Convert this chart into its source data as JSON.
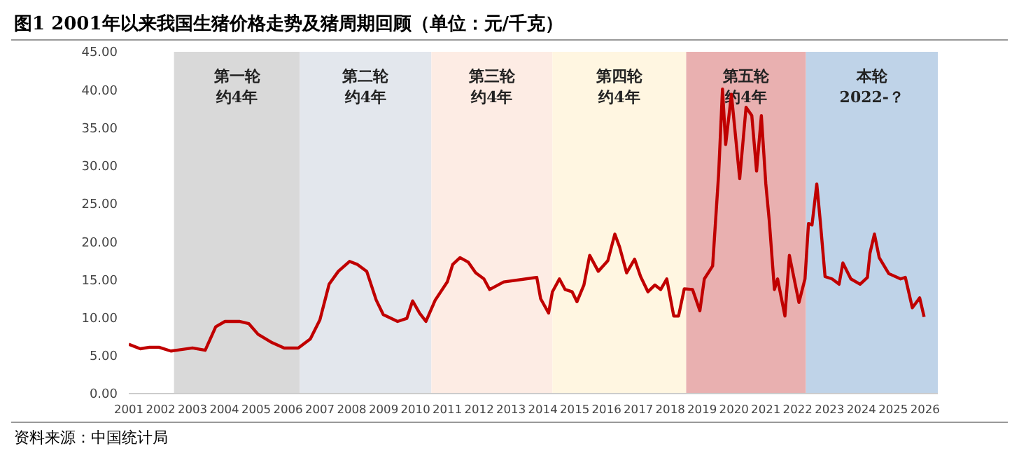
{
  "chart_data": {
    "type": "line",
    "title": "图1  2001年以来我国生猪价格走势及猪周期回顾（单位：元/千克）",
    "annotations": [
      "资料来源：中国统计局"
    ],
    "x": [
      2001.0,
      2001.36,
      2001.65,
      2001.95,
      2002.32,
      2003.0,
      2003.4,
      2003.73,
      2004.02,
      2004.47,
      2004.77,
      2005.06,
      2005.5,
      2005.88,
      2006.32,
      2006.7,
      2007.0,
      2007.29,
      2007.58,
      2007.93,
      2008.18,
      2008.47,
      2008.77,
      2008.99,
      2009.44,
      2009.73,
      2009.91,
      2010.13,
      2010.33,
      2010.62,
      2011.0,
      2011.17,
      2011.4,
      2011.66,
      2011.89,
      2012.15,
      2012.33,
      2012.77,
      2013.81,
      2013.93,
      2014.18,
      2014.3,
      2014.52,
      2014.7,
      2014.92,
      2015.07,
      2015.29,
      2015.47,
      2015.74,
      2016.04,
      2016.26,
      2016.41,
      2016.63,
      2016.88,
      2017.07,
      2017.3,
      2017.52,
      2017.7,
      2017.89,
      2018.11,
      2018.26,
      2018.44,
      2018.7,
      2018.93,
      2019.07,
      2019.33,
      2019.52,
      2019.64,
      2019.74,
      2019.92,
      2020.18,
      2020.38,
      2020.56,
      2020.71,
      2020.86,
      2021.0,
      2021.11,
      2021.27,
      2021.37,
      2021.6,
      2021.74,
      2022.04,
      2022.23,
      2022.34,
      2022.45,
      2022.6,
      2022.71,
      2022.86,
      2023.08,
      2023.3,
      2023.42,
      2023.67,
      2023.96,
      2024.19,
      2024.27,
      2024.41,
      2024.56,
      2024.86,
      2025.23,
      2025.38,
      2025.6,
      2025.83,
      2025.97
    ],
    "series": [
      {
        "color": "#c00000",
        "values": [
          6.5,
          5.9,
          6.1,
          6.1,
          5.6,
          6.0,
          5.7,
          8.8,
          9.5,
          9.5,
          9.2,
          7.8,
          6.7,
          6.0,
          6.0,
          7.2,
          9.7,
          14.4,
          16.1,
          17.4,
          17.0,
          16.1,
          12.3,
          10.4,
          9.5,
          9.9,
          12.2,
          10.6,
          9.5,
          12.3,
          14.7,
          17.0,
          17.9,
          17.3,
          15.9,
          15.1,
          13.7,
          14.7,
          15.3,
          12.5,
          10.6,
          13.4,
          15.1,
          13.7,
          13.4,
          12.1,
          14.3,
          18.2,
          16.1,
          17.5,
          21.0,
          19.3,
          15.9,
          17.7,
          15.4,
          13.4,
          14.3,
          13.7,
          15.1,
          10.2,
          10.2,
          13.8,
          13.7,
          10.9,
          15.1,
          16.8,
          29.0,
          40.1,
          32.8,
          39.4,
          28.3,
          37.7,
          36.6,
          29.3,
          36.6,
          27.6,
          22.7,
          13.7,
          15.1,
          10.2,
          18.2,
          12.0,
          15.1,
          22.4,
          22.2,
          27.6,
          22.7,
          15.4,
          15.1,
          14.4,
          17.2,
          15.1,
          14.4,
          15.3,
          18.5,
          21.0,
          17.9,
          15.8,
          15.1,
          15.3,
          11.3,
          12.6,
          10.1
        ]
      }
    ],
    "xlim": [
      2001,
      2026.4
    ],
    "xticks": [
      2001,
      2002,
      2003,
      2004,
      2005,
      2006,
      2007,
      2008,
      2009,
      2010,
      2011,
      2012,
      2013,
      2014,
      2015,
      2016,
      2017,
      2018,
      2019,
      2020,
      2021,
      2022,
      2023,
      2024,
      2025,
      2026
    ],
    "ylim": [
      0,
      45
    ],
    "yticks": [
      {
        "value": 0,
        "label": "0.00"
      },
      {
        "value": 5,
        "label": "5.00"
      },
      {
        "value": 10,
        "label": "10.00"
      },
      {
        "value": 15,
        "label": "15.00"
      },
      {
        "value": 20,
        "label": "20.00"
      },
      {
        "value": 25,
        "label": "25.00"
      },
      {
        "value": 30,
        "label": "30.00"
      },
      {
        "value": 35,
        "label": "35.00"
      },
      {
        "value": 40,
        "label": "40.00"
      },
      {
        "value": 45,
        "label": "45.00"
      }
    ],
    "bands": [
      {
        "axis": "x",
        "from": 2002.42,
        "to": 2006.37,
        "label": "第一轮约4年",
        "color": "#d9d9d9"
      },
      {
        "axis": "x",
        "from": 2006.37,
        "to": 2010.5,
        "label": "第二轮约4年",
        "color": "#e3e7ed"
      },
      {
        "axis": "x",
        "from": 2010.5,
        "to": 2014.3,
        "label": "第三轮约4年",
        "color": "#fdece4"
      },
      {
        "axis": "x",
        "from": 2014.3,
        "to": 2018.5,
        "label": "第四轮约4年",
        "color": "#fff6e1"
      },
      {
        "axis": "x",
        "from": 2018.5,
        "to": 2022.26,
        "label": "第五轮约4年",
        "color": "#e9b0b0"
      },
      {
        "axis": "x",
        "from": 2022.26,
        "to": 2026.4,
        "label": "本轮\n2022-？",
        "color": "#bfd3e8"
      }
    ],
    "grid": false,
    "legend": false,
    "line_style": "solid",
    "marker": "none"
  }
}
